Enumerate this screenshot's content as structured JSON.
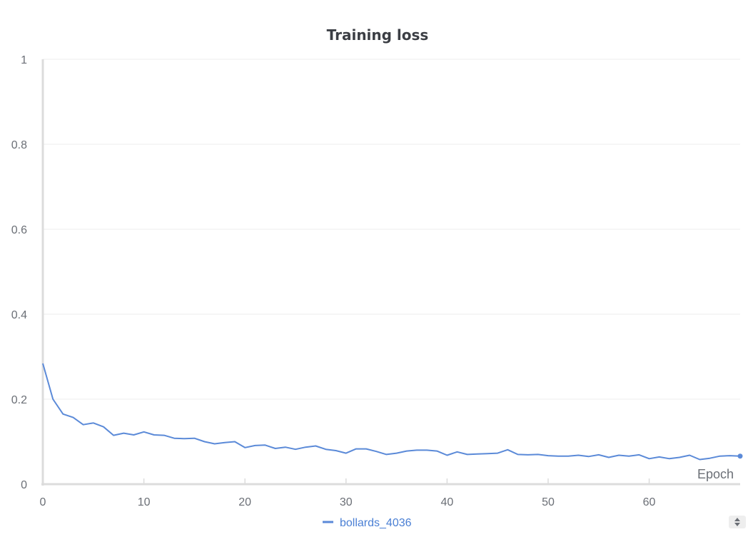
{
  "chart_data": {
    "type": "line",
    "title": "Training loss",
    "xlabel": "Epoch",
    "ylabel": "",
    "xlim": [
      0,
      69
    ],
    "ylim": [
      0,
      1
    ],
    "x_ticks": [
      0,
      10,
      20,
      30,
      40,
      50,
      60
    ],
    "y_ticks": [
      0,
      0.2,
      0.4,
      0.6,
      0.8,
      1
    ],
    "y_tick_labels": [
      "0",
      "0.2",
      "0.4",
      "0.6",
      "0.8",
      "1"
    ],
    "grid": true,
    "legend_position": "bottom-center",
    "series": [
      {
        "name": "bollards_4036",
        "color": "#5b8ad8",
        "x": [
          0,
          1,
          2,
          3,
          4,
          5,
          6,
          7,
          8,
          9,
          10,
          11,
          12,
          13,
          14,
          15,
          16,
          17,
          18,
          19,
          20,
          21,
          22,
          23,
          24,
          25,
          26,
          27,
          28,
          29,
          30,
          31,
          32,
          33,
          34,
          35,
          36,
          37,
          38,
          39,
          40,
          41,
          42,
          43,
          44,
          45,
          46,
          47,
          48,
          49,
          50,
          51,
          52,
          53,
          54,
          55,
          56,
          57,
          58,
          59,
          60,
          61,
          62,
          63,
          64,
          65,
          66,
          67,
          68,
          69
        ],
        "y": [
          0.284,
          0.2,
          0.165,
          0.157,
          0.14,
          0.144,
          0.135,
          0.115,
          0.12,
          0.116,
          0.123,
          0.116,
          0.115,
          0.108,
          0.107,
          0.108,
          0.1,
          0.095,
          0.098,
          0.1,
          0.086,
          0.091,
          0.092,
          0.084,
          0.087,
          0.082,
          0.087,
          0.09,
          0.082,
          0.079,
          0.073,
          0.083,
          0.083,
          0.077,
          0.07,
          0.073,
          0.078,
          0.08,
          0.08,
          0.078,
          0.068,
          0.076,
          0.07,
          0.071,
          0.072,
          0.073,
          0.081,
          0.07,
          0.069,
          0.07,
          0.067,
          0.066,
          0.066,
          0.068,
          0.065,
          0.069,
          0.063,
          0.068,
          0.066,
          0.069,
          0.06,
          0.064,
          0.06,
          0.063,
          0.068,
          0.058,
          0.061,
          0.066,
          0.067,
          0.066
        ]
      }
    ]
  },
  "controls": {
    "scroll_icon": "up-down-arrows-icon"
  }
}
